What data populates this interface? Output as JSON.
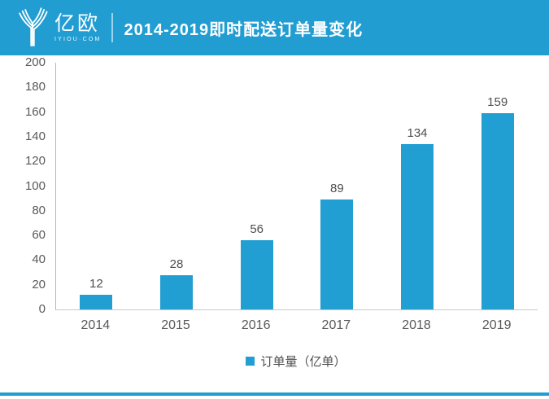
{
  "header": {
    "logo": {
      "name": "亿欧",
      "domain": "IYIOU·COM"
    },
    "title": "2014-2019即时配送订单量变化"
  },
  "chart_data": {
    "type": "bar",
    "title": "2014-2019即时配送订单量变化",
    "categories": [
      "2014",
      "2015",
      "2016",
      "2017",
      "2018",
      "2019"
    ],
    "values": [
      12,
      28,
      56,
      89,
      134,
      159
    ],
    "xlabel": "",
    "ylabel": "",
    "ylim": [
      0,
      200
    ],
    "ytick_step": 20,
    "yticks": [
      200,
      180,
      160,
      140,
      120,
      100,
      80,
      60,
      40,
      20,
      0
    ],
    "grid": false,
    "legend": [
      "订单量（亿单）"
    ],
    "legend_position": "bottom",
    "bar_color": "#219ed2"
  },
  "colors": {
    "accent": "#219dd2",
    "bar": "#219ed2",
    "axis_line": "#c0c0c0",
    "text_gray": "#595959"
  }
}
